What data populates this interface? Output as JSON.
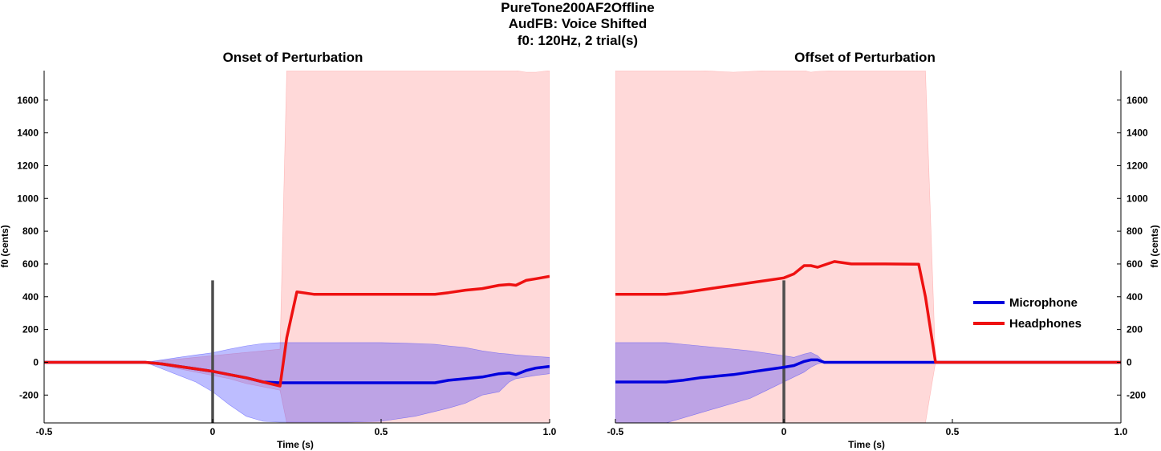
{
  "title_lines": [
    "PureTone200AF2Offline",
    "AudFB: Voice Shifted",
    "f0: 120Hz, 2 trial(s)"
  ],
  "chart_data": [
    {
      "type": "line",
      "title": "Onset of Perturbation",
      "xlabel": "Time (s)",
      "ylabel": "f0 (cents)",
      "xlim": [
        -0.5,
        1.0
      ],
      "ylim": [
        -370,
        1780
      ],
      "xticks": [
        "-0.5",
        "0",
        "0.5",
        "1.0"
      ],
      "xtick_values": [
        -0.5,
        0,
        0.5,
        1.0
      ],
      "yticks": [
        "-200",
        "0",
        "200",
        "400",
        "600",
        "800",
        "1000",
        "1200",
        "1400",
        "1600"
      ],
      "ytick_values": [
        -200,
        0,
        200,
        400,
        600,
        800,
        1000,
        1200,
        1400,
        1600
      ],
      "yaxis_side": "left",
      "marker_line": {
        "x": 0,
        "y": [
          -370,
          500
        ],
        "color": "#4d4d4d"
      },
      "series": [
        {
          "name": "Microphone",
          "color": "#0000dd",
          "fill": "#3333ff",
          "x": [
            -0.5,
            -0.2,
            -0.15,
            -0.1,
            -0.05,
            0,
            0.05,
            0.1,
            0.15,
            0.2,
            0.3,
            0.4,
            0.5,
            0.6,
            0.66,
            0.7,
            0.75,
            0.8,
            0.85,
            0.88,
            0.9,
            0.93,
            0.96,
            1.0
          ],
          "y": [
            0,
            0,
            -10,
            -25,
            -40,
            -55,
            -75,
            -95,
            -120,
            -125,
            -125,
            -125,
            -125,
            -125,
            -125,
            -110,
            -100,
            -90,
            -70,
            -65,
            -75,
            -50,
            -35,
            -25
          ],
          "band_upper": [
            0,
            0,
            15,
            30,
            45,
            58,
            80,
            100,
            115,
            120,
            120,
            120,
            120,
            115,
            110,
            100,
            90,
            70,
            55,
            50,
            45,
            40,
            35,
            30
          ],
          "band_lower": [
            0,
            0,
            -40,
            -80,
            -120,
            -180,
            -260,
            -330,
            -360,
            -365,
            -365,
            -365,
            -360,
            -330,
            -300,
            -280,
            -250,
            -200,
            -180,
            -120,
            -100,
            -90,
            -80,
            -70
          ]
        },
        {
          "name": "Headphones",
          "color": "#ee1111",
          "fill": "#ff8888",
          "x": [
            -0.5,
            -0.2,
            -0.15,
            -0.1,
            -0.05,
            0,
            0.05,
            0.1,
            0.15,
            0.2,
            0.22,
            0.25,
            0.3,
            0.4,
            0.5,
            0.6,
            0.66,
            0.7,
            0.75,
            0.8,
            0.85,
            0.88,
            0.9,
            0.93,
            0.96,
            1.0
          ],
          "y": [
            0,
            0,
            -10,
            -25,
            -40,
            -55,
            -75,
            -95,
            -120,
            -145,
            150,
            430,
            415,
            415,
            415,
            415,
            415,
            425,
            440,
            450,
            470,
            475,
            470,
            500,
            510,
            525
          ],
          "band_upper": [
            0,
            0,
            10,
            20,
            30,
            40,
            50,
            60,
            70,
            80,
            1780,
            1780,
            1780,
            1780,
            1780,
            1780,
            1780,
            1780,
            1780,
            1780,
            1780,
            1780,
            1780,
            1770,
            1770,
            1780
          ],
          "band_lower": [
            0,
            0,
            -20,
            -40,
            -60,
            -80,
            -100,
            -130,
            -150,
            -170,
            -370,
            -370,
            -370,
            -370,
            -370,
            -370,
            -370,
            -370,
            -370,
            -370,
            -370,
            -370,
            -370,
            -370,
            -370,
            -370
          ]
        }
      ]
    },
    {
      "type": "line",
      "title": "Offset of Perturbation",
      "xlabel": "Time (s)",
      "ylabel": "f0 (cents)",
      "xlim": [
        -0.5,
        1.0
      ],
      "ylim": [
        -370,
        1780
      ],
      "xticks": [
        "-0.5",
        "0",
        "0.5",
        "1.0"
      ],
      "xtick_values": [
        -0.5,
        0,
        0.5,
        1.0
      ],
      "yticks": [
        "-200",
        "0",
        "200",
        "400",
        "600",
        "800",
        "1000",
        "1200",
        "1400",
        "1600"
      ],
      "ytick_values": [
        -200,
        0,
        200,
        400,
        600,
        800,
        1000,
        1200,
        1400,
        1600
      ],
      "yaxis_side": "right",
      "marker_line": {
        "x": 0,
        "y": [
          -370,
          500
        ],
        "color": "#4d4d4d"
      },
      "legend_position": "right",
      "series": [
        {
          "name": "Microphone",
          "color": "#0000dd",
          "fill": "#3333ff",
          "x": [
            -0.5,
            -0.35,
            -0.3,
            -0.25,
            -0.2,
            -0.15,
            -0.1,
            -0.05,
            0,
            0.03,
            0.06,
            0.08,
            0.1,
            0.12,
            0.15,
            0.2,
            0.3,
            0.4,
            0.45,
            0.5,
            0.6,
            0.8,
            1.0
          ],
          "y": [
            -120,
            -120,
            -110,
            -95,
            -85,
            -75,
            -60,
            -45,
            -30,
            -20,
            5,
            15,
            15,
            0,
            0,
            0,
            0,
            0,
            0,
            0,
            0,
            0,
            0
          ],
          "band_upper": [
            120,
            120,
            110,
            100,
            90,
            80,
            70,
            55,
            40,
            30,
            50,
            60,
            40,
            0,
            0,
            0,
            0,
            0,
            0,
            0,
            0,
            0,
            0
          ],
          "band_lower": [
            -370,
            -370,
            -340,
            -310,
            -280,
            -250,
            -220,
            -170,
            -120,
            -90,
            -60,
            -30,
            -10,
            0,
            0,
            0,
            0,
            0,
            0,
            0,
            0,
            0,
            0
          ]
        },
        {
          "name": "Headphones",
          "color": "#ee1111",
          "fill": "#ff8888",
          "x": [
            -0.5,
            -0.35,
            -0.3,
            -0.25,
            -0.2,
            -0.15,
            -0.1,
            -0.05,
            0,
            0.03,
            0.06,
            0.08,
            0.1,
            0.15,
            0.2,
            0.3,
            0.4,
            0.42,
            0.45,
            0.5,
            0.6,
            0.8,
            1.0
          ],
          "y": [
            415,
            415,
            425,
            440,
            455,
            470,
            485,
            500,
            515,
            540,
            590,
            590,
            580,
            615,
            600,
            600,
            598,
            400,
            0,
            0,
            0,
            0,
            0
          ],
          "band_upper": [
            1780,
            1780,
            1780,
            1780,
            1775,
            1770,
            1775,
            1780,
            1780,
            1780,
            1780,
            1770,
            1775,
            1780,
            1780,
            1780,
            1780,
            1780,
            0,
            0,
            0,
            0,
            0
          ],
          "band_lower": [
            -370,
            -370,
            -370,
            -370,
            -370,
            -370,
            -370,
            -370,
            -370,
            -370,
            -370,
            -370,
            -370,
            -370,
            -370,
            -370,
            -370,
            -370,
            0,
            0,
            0,
            0,
            0
          ]
        }
      ]
    }
  ]
}
